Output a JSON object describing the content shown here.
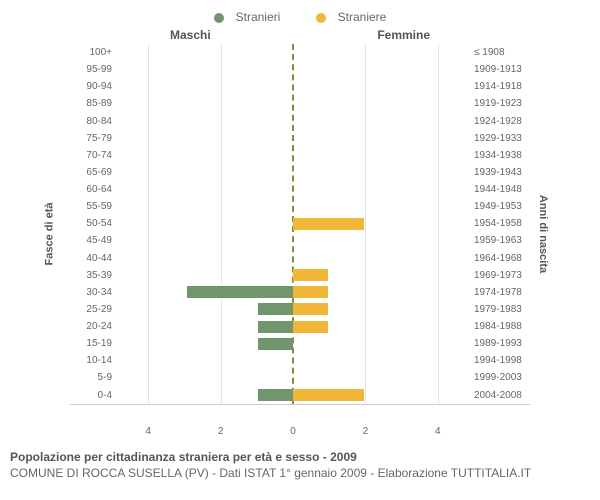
{
  "legend": {
    "male": "Stranieri",
    "female": "Straniere"
  },
  "colors": {
    "male": "#71966e",
    "female": "#f2b736",
    "center_line": "#8a8a3a",
    "grid": "#e5e5e5",
    "text": "#666666"
  },
  "headers": {
    "male": "Maschi",
    "female": "Femmine"
  },
  "axis_labels": {
    "left": "Fasce di età",
    "right": "Anni di nascita"
  },
  "xaxis": {
    "max": 5,
    "ticks": [
      0,
      2,
      4
    ]
  },
  "rows": [
    {
      "age": "100+",
      "year": "≤ 1908",
      "m": 0,
      "f": 0
    },
    {
      "age": "95-99",
      "year": "1909-1913",
      "m": 0,
      "f": 0
    },
    {
      "age": "90-94",
      "year": "1914-1918",
      "m": 0,
      "f": 0
    },
    {
      "age": "85-89",
      "year": "1919-1923",
      "m": 0,
      "f": 0
    },
    {
      "age": "80-84",
      "year": "1924-1928",
      "m": 0,
      "f": 0
    },
    {
      "age": "75-79",
      "year": "1929-1933",
      "m": 0,
      "f": 0
    },
    {
      "age": "70-74",
      "year": "1934-1938",
      "m": 0,
      "f": 0
    },
    {
      "age": "65-69",
      "year": "1939-1943",
      "m": 0,
      "f": 0
    },
    {
      "age": "60-64",
      "year": "1944-1948",
      "m": 0,
      "f": 0
    },
    {
      "age": "55-59",
      "year": "1949-1953",
      "m": 0,
      "f": 0
    },
    {
      "age": "50-54",
      "year": "1954-1958",
      "m": 0,
      "f": 2
    },
    {
      "age": "45-49",
      "year": "1959-1963",
      "m": 0,
      "f": 0
    },
    {
      "age": "40-44",
      "year": "1964-1968",
      "m": 0,
      "f": 0
    },
    {
      "age": "35-39",
      "year": "1969-1973",
      "m": 0,
      "f": 1
    },
    {
      "age": "30-34",
      "year": "1974-1978",
      "m": 3,
      "f": 1
    },
    {
      "age": "25-29",
      "year": "1979-1983",
      "m": 1,
      "f": 1
    },
    {
      "age": "20-24",
      "year": "1984-1988",
      "m": 1,
      "f": 1
    },
    {
      "age": "15-19",
      "year": "1989-1993",
      "m": 1,
      "f": 0
    },
    {
      "age": "10-14",
      "year": "1994-1998",
      "m": 0,
      "f": 0
    },
    {
      "age": "5-9",
      "year": "1999-2003",
      "m": 0,
      "f": 0
    },
    {
      "age": "0-4",
      "year": "2004-2008",
      "m": 1,
      "f": 2
    }
  ],
  "footer": {
    "title": "Popolazione per cittadinanza straniera per età e sesso - 2009",
    "subtitle": "COMUNE DI ROCCA SUSELLA (PV) - Dati ISTAT 1° gennaio 2009 - Elaborazione TUTTITALIA.IT"
  }
}
